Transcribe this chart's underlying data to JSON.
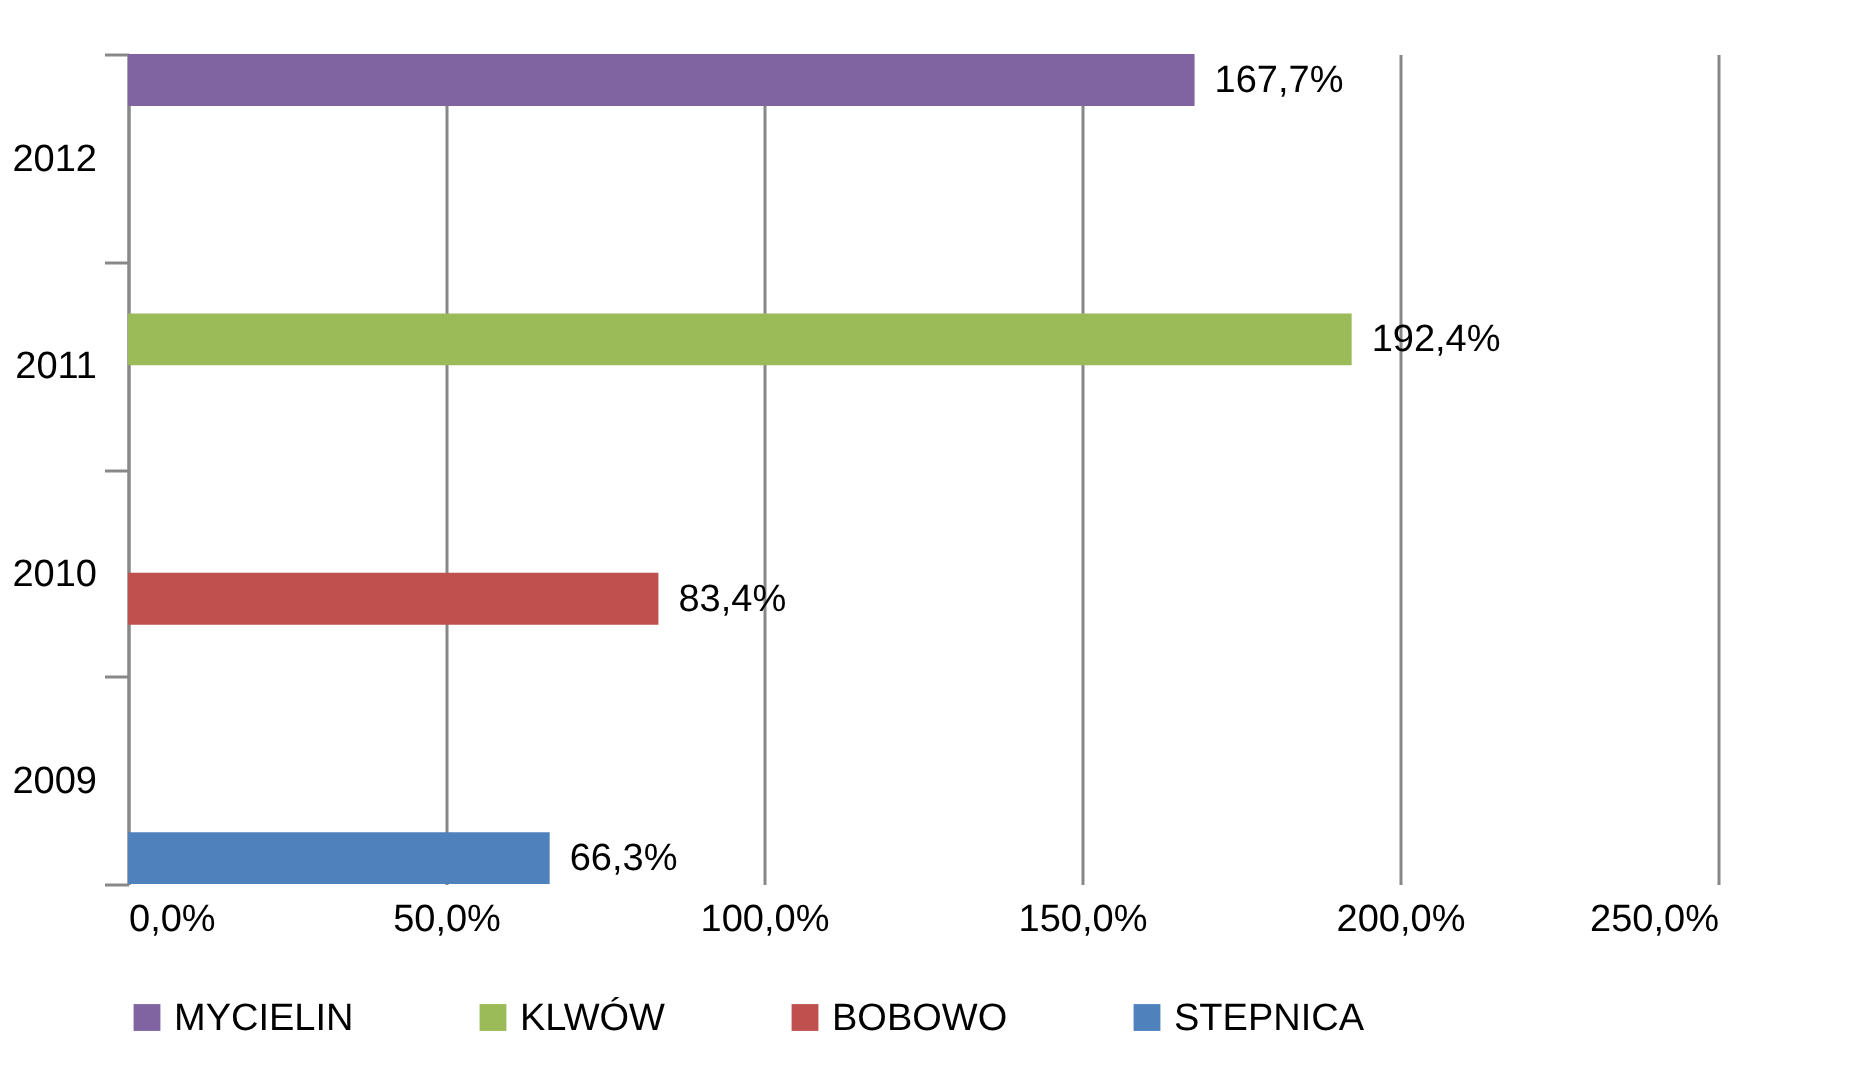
{
  "chart_data": {
    "type": "bar",
    "orientation": "horizontal",
    "categories": [
      "2012",
      "2011",
      "2010",
      "2009"
    ],
    "series": [
      {
        "name": "MYCIELIN",
        "color": "#8064a2",
        "values": [
          167.7,
          null,
          null,
          null
        ],
        "value_labels": [
          "167,7%",
          null,
          null,
          null
        ]
      },
      {
        "name": "KLWÓW",
        "color": "#9bbb59",
        "values": [
          null,
          192.4,
          null,
          null
        ],
        "value_labels": [
          null,
          "192,4%",
          null,
          null
        ]
      },
      {
        "name": "BOBOWO",
        "color": "#c0504d",
        "values": [
          null,
          null,
          83.4,
          null
        ],
        "value_labels": [
          null,
          null,
          "83,4%",
          null
        ]
      },
      {
        "name": "STEPNICA",
        "color": "#4f81bd",
        "values": [
          null,
          null,
          null,
          66.3
        ],
        "value_labels": [
          null,
          null,
          null,
          "66,3%"
        ]
      }
    ],
    "xlim": [
      0,
      250
    ],
    "xticks": [
      {
        "value": 0,
        "label": "0,0%"
      },
      {
        "value": 50,
        "label": "50,0%"
      },
      {
        "value": 100,
        "label": "100,0%"
      },
      {
        "value": 150,
        "label": "150,0%"
      },
      {
        "value": 200,
        "label": "200,0%"
      },
      {
        "value": 250,
        "label": "250,0%"
      }
    ],
    "grid": "x",
    "legend": "bottom"
  }
}
